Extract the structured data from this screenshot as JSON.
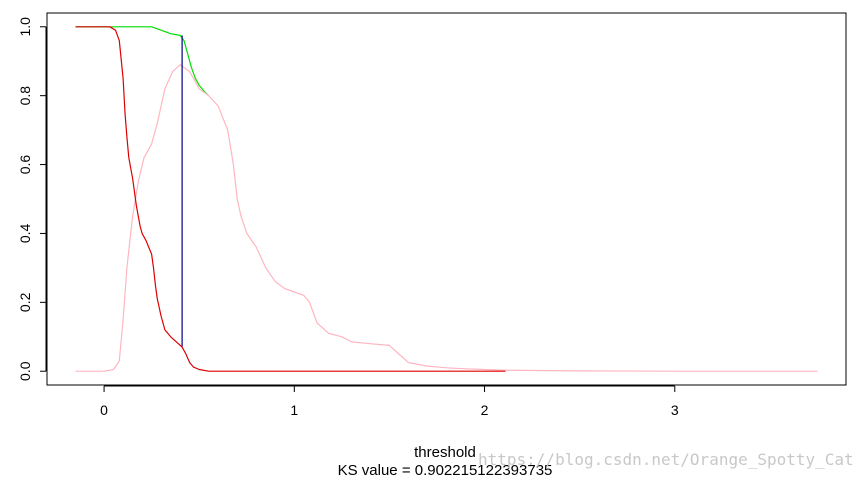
{
  "chart_data": {
    "type": "line",
    "xlabel": "threshold",
    "sub_label": "KS value = 0.902215122393735",
    "xlim": [
      -0.3,
      3.9
    ],
    "ylim": [
      -0.04,
      1.04
    ],
    "x_ticks": [
      0,
      1,
      2,
      3
    ],
    "y_ticks": [
      0.0,
      0.2,
      0.4,
      0.6,
      0.8,
      1.0
    ],
    "y_tick_labels": [
      "0.0",
      "0.2",
      "0.4",
      "0.6",
      "0.8",
      "1.0"
    ],
    "grid": false,
    "legend": "none",
    "series": [
      {
        "color": "#00dd00",
        "x": [
          -0.15,
          0.05,
          0.15,
          0.25,
          0.3,
          0.35,
          0.4,
          0.42,
          0.44,
          0.46,
          0.48,
          0.5,
          0.53,
          0.55
        ],
        "y": [
          1.0,
          1.0,
          1.0,
          1.0,
          0.99,
          0.98,
          0.975,
          0.96,
          0.92,
          0.88,
          0.85,
          0.83,
          0.81,
          0.8
        ]
      },
      {
        "color": "#ffb6c1",
        "x": [
          -0.15,
          0.0,
          0.05,
          0.08,
          0.1,
          0.12,
          0.15,
          0.18,
          0.21,
          0.25,
          0.28,
          0.32,
          0.36,
          0.4,
          0.45,
          0.5,
          0.55,
          0.6,
          0.65,
          0.68,
          0.7,
          0.72,
          0.75,
          0.8,
          0.85,
          0.9,
          0.95,
          1.0,
          1.05,
          1.08,
          1.12,
          1.18,
          1.25,
          1.3,
          1.4,
          1.5,
          1.55,
          1.6,
          1.7,
          1.8,
          1.9,
          2.0,
          2.1,
          2.5,
          3.0,
          3.5,
          3.75
        ],
        "y": [
          0.0,
          0.0,
          0.005,
          0.03,
          0.15,
          0.3,
          0.45,
          0.55,
          0.62,
          0.66,
          0.72,
          0.82,
          0.87,
          0.89,
          0.87,
          0.82,
          0.8,
          0.77,
          0.7,
          0.6,
          0.5,
          0.45,
          0.4,
          0.36,
          0.3,
          0.26,
          0.24,
          0.23,
          0.22,
          0.2,
          0.14,
          0.11,
          0.1,
          0.085,
          0.08,
          0.075,
          0.05,
          0.025,
          0.015,
          0.01,
          0.007,
          0.005,
          0.003,
          0.001,
          0.0,
          0.0,
          0.0
        ]
      },
      {
        "color": "#dd0000",
        "x": [
          -0.15,
          0.03,
          0.06,
          0.08,
          0.1,
          0.11,
          0.12,
          0.13,
          0.15,
          0.17,
          0.19,
          0.2,
          0.22,
          0.25,
          0.26,
          0.27,
          0.28,
          0.3,
          0.32,
          0.35,
          0.38,
          0.41,
          0.43,
          0.45,
          0.47,
          0.5,
          0.55,
          0.6,
          1.0,
          1.5,
          2.11
        ],
        "y": [
          1.0,
          1.0,
          0.99,
          0.96,
          0.85,
          0.75,
          0.68,
          0.62,
          0.56,
          0.48,
          0.42,
          0.4,
          0.38,
          0.34,
          0.3,
          0.25,
          0.21,
          0.16,
          0.12,
          0.1,
          0.085,
          0.07,
          0.05,
          0.025,
          0.012,
          0.005,
          0.0,
          0.0,
          0.0,
          0.0,
          0.0
        ]
      },
      {
        "color": "#00008b",
        "x": [
          0.41,
          0.41
        ],
        "y": [
          0.072,
          0.975
        ]
      }
    ]
  },
  "watermark": "https://blog.csdn.net/Orange_Spotty_Cat"
}
